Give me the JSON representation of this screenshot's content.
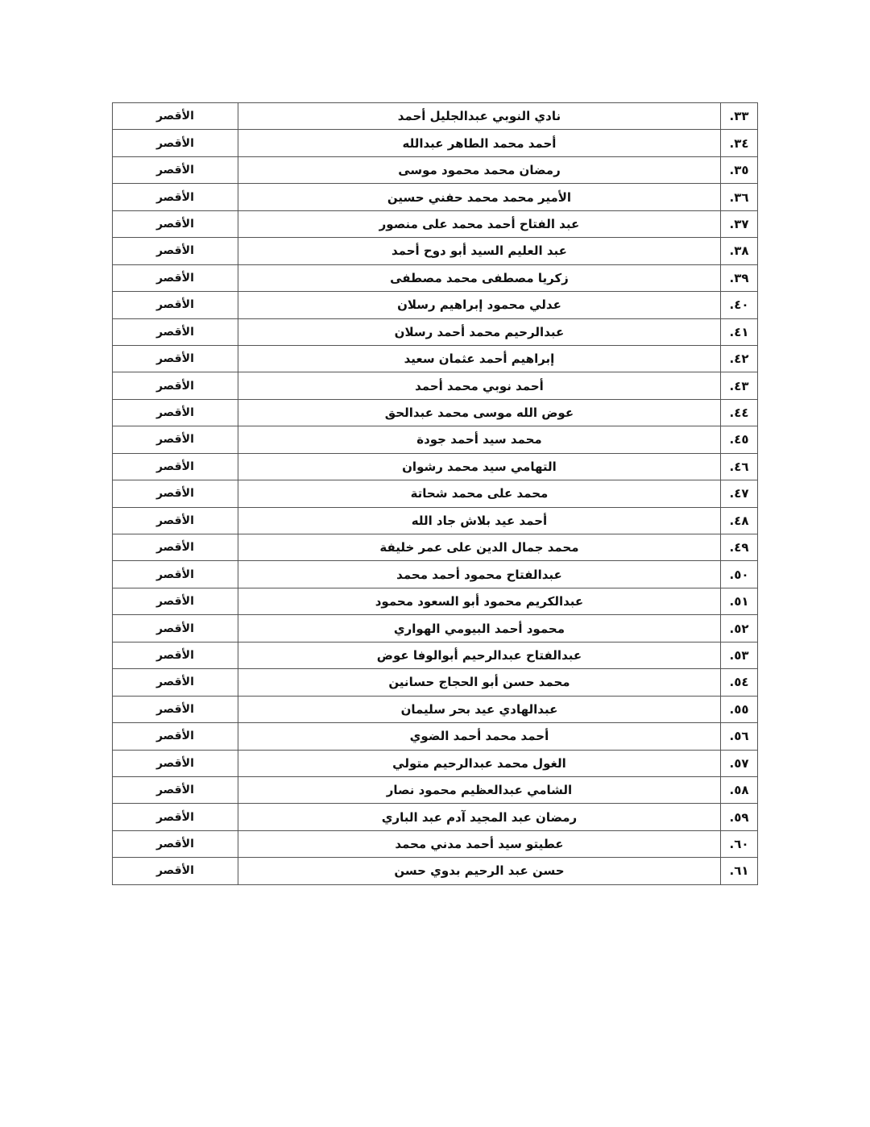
{
  "table": {
    "rows": [
      {
        "num": "٣٣.",
        "name": "نادي النوبي عبدالجليل أحمد",
        "gov": "الأقصر"
      },
      {
        "num": "٣٤.",
        "name": "أحمد محمد الطاهر عبدالله",
        "gov": "الأقصر"
      },
      {
        "num": "٣٥.",
        "name": "رمضان محمد محمود موسى",
        "gov": "الأقصر"
      },
      {
        "num": "٣٦.",
        "name": "الأمير محمد محمد حفني حسين",
        "gov": "الأقصر"
      },
      {
        "num": "٣٧.",
        "name": "عبد الفتاح أحمد محمد على منصور",
        "gov": "الأقصر"
      },
      {
        "num": "٣٨.",
        "name": "عبد العليم السيد أبو دوح أحمد",
        "gov": "الأقصر"
      },
      {
        "num": "٣٩.",
        "name": "زكريا مصطفى محمد مصطفى",
        "gov": "الأقصر"
      },
      {
        "num": "٤٠.",
        "name": "عدلي محمود إبراهيم رسلان",
        "gov": "الأقصر"
      },
      {
        "num": "٤١.",
        "name": "عبدالرحيم محمد أحمد رسلان",
        "gov": "الأقصر"
      },
      {
        "num": "٤٢.",
        "name": "إبراهيم أحمد عثمان سعيد",
        "gov": "الأقصر"
      },
      {
        "num": "٤٣.",
        "name": "أحمد نوبي محمد أحمد",
        "gov": "الأقصر"
      },
      {
        "num": "٤٤.",
        "name": "عوض الله موسى محمد عبدالحق",
        "gov": "الأقصر"
      },
      {
        "num": "٤٥.",
        "name": "محمد سيد أحمد جودة",
        "gov": "الأقصر"
      },
      {
        "num": "٤٦.",
        "name": "التهامي سيد محمد رشوان",
        "gov": "الأقصر"
      },
      {
        "num": "٤٧.",
        "name": "محمد على محمد شحاتة",
        "gov": "الأقصر"
      },
      {
        "num": "٤٨.",
        "name": "أحمد عيد بلاش جاد الله",
        "gov": "الأقصر"
      },
      {
        "num": "٤٩.",
        "name": "محمد جمال الدين على عمر خليفة",
        "gov": "الأقصر"
      },
      {
        "num": "٥٠.",
        "name": "عبدالفتاح محمود أحمد محمد",
        "gov": "الأقصر"
      },
      {
        "num": "٥١.",
        "name": "عبدالكريم محمود أبو السعود محمود",
        "gov": "الأقصر"
      },
      {
        "num": "٥٢.",
        "name": "محمود أحمد البيومي الهواري",
        "gov": "الأقصر"
      },
      {
        "num": "٥٣.",
        "name": "عبدالفتاح عبدالرحيم أبوالوفا عوض",
        "gov": "الأقصر"
      },
      {
        "num": "٥٤.",
        "name": "محمد حسن أبو الحجاج حسانين",
        "gov": "الأقصر"
      },
      {
        "num": "٥٥.",
        "name": "عبدالهادي عيد بحر سليمان",
        "gov": "الأقصر"
      },
      {
        "num": "٥٦.",
        "name": "أحمد محمد أحمد الضوي",
        "gov": "الأقصر"
      },
      {
        "num": "٥٧.",
        "name": "الغول محمد عبدالرحيم متولي",
        "gov": "الأقصر"
      },
      {
        "num": "٥٨.",
        "name": "الشامي عبدالعظيم محمود نصار",
        "gov": "الأقصر"
      },
      {
        "num": "٥٩.",
        "name": "رمضان عبد المجيد آدم عبد الباري",
        "gov": "الأقصر"
      },
      {
        "num": "٦٠.",
        "name": "عطيتو سيد أحمد مدني محمد",
        "gov": "الأقصر"
      },
      {
        "num": "٦١.",
        "name": "حسن عبد الرحيم بدوي حسن",
        "gov": "الأقصر"
      }
    ]
  }
}
